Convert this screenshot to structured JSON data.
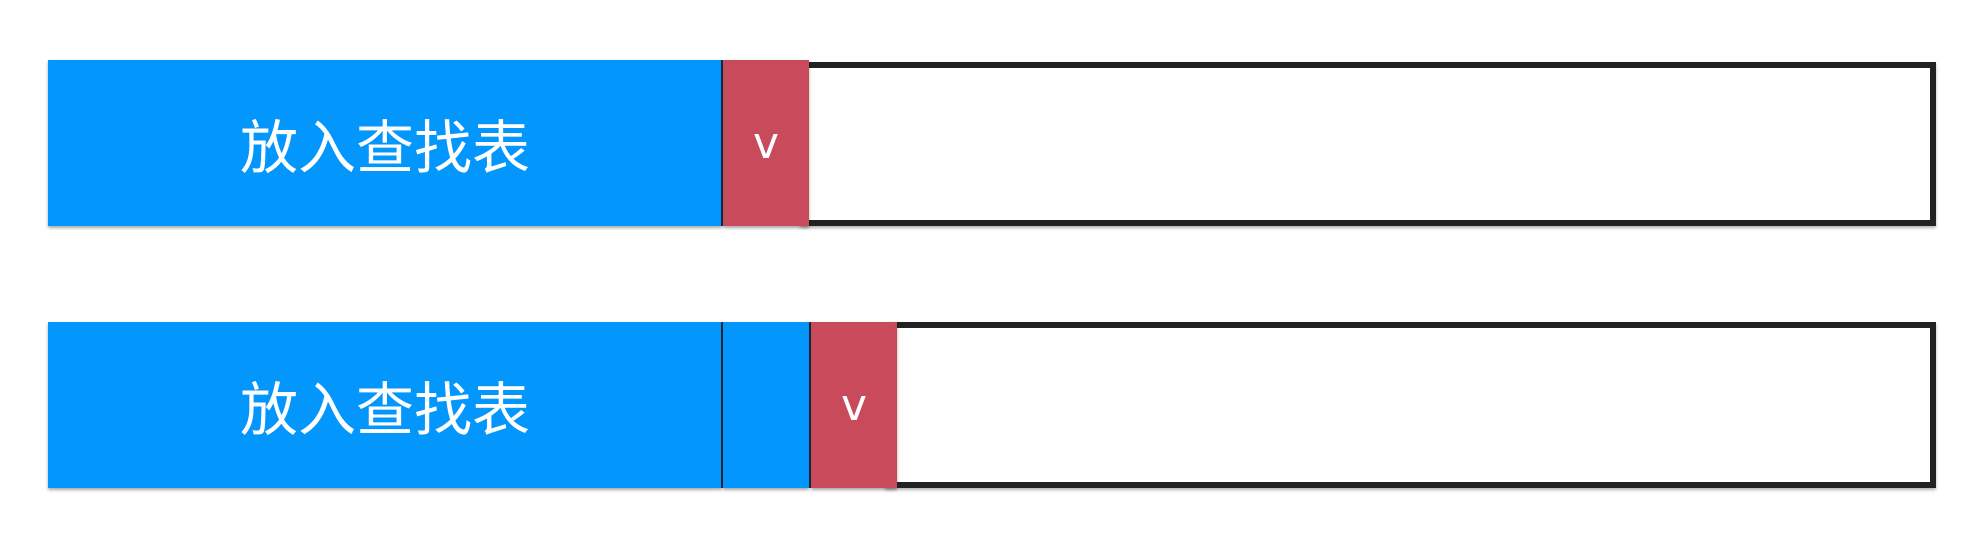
{
  "colors": {
    "blue": "#0397fe",
    "red": "#c94b5b",
    "border": "#222222"
  },
  "rows": [
    {
      "label": "放入查找表",
      "marker": "v"
    },
    {
      "label": "放入查找表",
      "marker": "v"
    }
  ]
}
